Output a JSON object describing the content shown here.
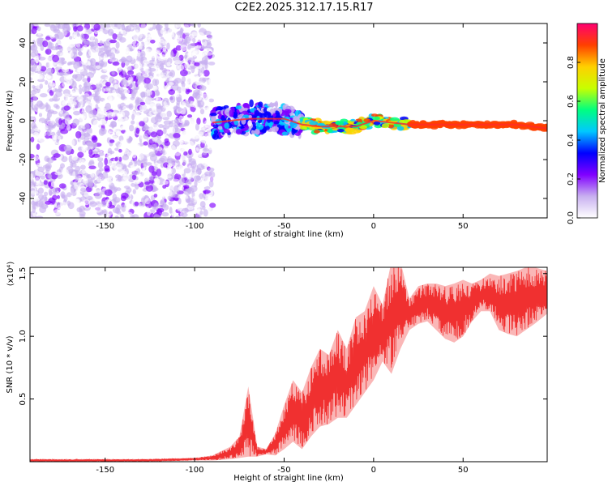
{
  "title": "C2E2.2025.312.17.15.R17",
  "chart_data": [
    {
      "type": "heatmap",
      "xlabel": "Height of straight line (km)",
      "ylabel": "Frequency (Hz)",
      "xlim": [
        -192,
        97
      ],
      "ylim": [
        -50,
        50
      ],
      "x_ticks": [
        -150,
        -100,
        -50,
        0,
        50
      ],
      "x_tick_labels": [
        "-150",
        "-100",
        "-50",
        "0",
        "50"
      ],
      "y_ticks": [
        -40,
        -20,
        0,
        20,
        40
      ],
      "y_tick_labels": [
        "-40",
        "-20",
        "0",
        "20",
        "40"
      ],
      "colorbar": {
        "label": "Normalized spectral amplitude",
        "range": [
          0,
          1
        ],
        "ticks": [
          0.0,
          0.2,
          0.4,
          0.6,
          0.8
        ],
        "tick_labels": [
          "0.0",
          "0.2",
          "0.4",
          "0.6",
          "0.8"
        ],
        "colors": [
          "#ffffff",
          "#c8b0f0",
          "#8000ff",
          "#0000ff",
          "#00c8ff",
          "#00ff80",
          "#c8ff00",
          "#ffd000",
          "#ff4000",
          "#ff0070"
        ]
      },
      "regions": [
        {
          "x": [
            -192,
            -90
          ],
          "freq": [
            -50,
            50
          ],
          "amplitude": [
            0.0,
            0.25
          ],
          "pattern": "noise"
        },
        {
          "x": [
            -90,
            -40
          ],
          "freq": [
            -8,
            8
          ],
          "amplitude": [
            0.1,
            0.5
          ],
          "pattern": "broad band"
        },
        {
          "x": [
            -40,
            20
          ],
          "freq": [
            -4,
            3
          ],
          "amplitude": [
            0.4,
            0.95
          ],
          "pattern": "narrow line"
        },
        {
          "x": [
            20,
            97
          ],
          "freq": [
            -3,
            0
          ],
          "amplitude": [
            0.9,
            1.0
          ],
          "pattern": "narrow line"
        }
      ],
      "ridge": {
        "x": [
          -90,
          -70,
          -50,
          -40,
          -30,
          -20,
          -10,
          0,
          10,
          20,
          40,
          60,
          80,
          97
        ],
        "freq": [
          -1,
          1,
          1,
          -2,
          -3,
          -3,
          -3,
          0,
          -1,
          -2,
          -2,
          -2,
          -2,
          -4
        ]
      }
    },
    {
      "type": "line",
      "xlabel": "Height of straight line (km)",
      "ylabel": "SNR (10 * v/v)",
      "y_multiplier": "(x10⁴)",
      "xlim": [
        -192,
        97
      ],
      "ylim": [
        0,
        1.55
      ],
      "x_ticks": [
        -150,
        -100,
        -50,
        0,
        50
      ],
      "x_tick_labels": [
        "-150",
        "-100",
        "-50",
        "0",
        "50"
      ],
      "y_ticks": [
        0.5,
        1.0,
        1.5
      ],
      "y_tick_labels": [
        "0.5",
        "1.0",
        "1.5"
      ],
      "series": [
        {
          "color": "#f03030",
          "x": [
            -192,
            -160,
            -130,
            -100,
            -90,
            -80,
            -75,
            -70,
            -65,
            -60,
            -55,
            -50,
            -45,
            -40,
            -35,
            -30,
            -25,
            -20,
            -15,
            -10,
            -5,
            0,
            5,
            10,
            15,
            20,
            25,
            30,
            35,
            40,
            45,
            50,
            55,
            60,
            65,
            70,
            75,
            80,
            85,
            90,
            97
          ],
          "y_min": [
            0.0,
            0.0,
            0.0,
            0.01,
            0.01,
            0.02,
            0.03,
            0.04,
            0.04,
            0.06,
            0.05,
            0.1,
            0.16,
            0.1,
            0.2,
            0.28,
            0.3,
            0.35,
            0.35,
            0.45,
            0.55,
            0.65,
            0.8,
            0.7,
            0.9,
            1.05,
            1.1,
            1.12,
            1.05,
            0.98,
            0.95,
            1.0,
            1.12,
            1.2,
            1.2,
            1.05,
            1.02,
            1.0,
            1.05,
            1.1,
            1.18
          ],
          "y_max": [
            0.02,
            0.02,
            0.02,
            0.03,
            0.05,
            0.12,
            0.2,
            0.6,
            0.12,
            0.1,
            0.22,
            0.45,
            0.65,
            0.55,
            0.75,
            0.9,
            0.85,
            1.05,
            0.9,
            1.15,
            1.2,
            1.4,
            1.25,
            1.6,
            1.6,
            1.3,
            1.4,
            1.42,
            1.42,
            1.4,
            1.42,
            1.45,
            1.42,
            1.45,
            1.5,
            1.48,
            1.5,
            1.52,
            1.55,
            1.55,
            1.52
          ]
        }
      ]
    }
  ]
}
